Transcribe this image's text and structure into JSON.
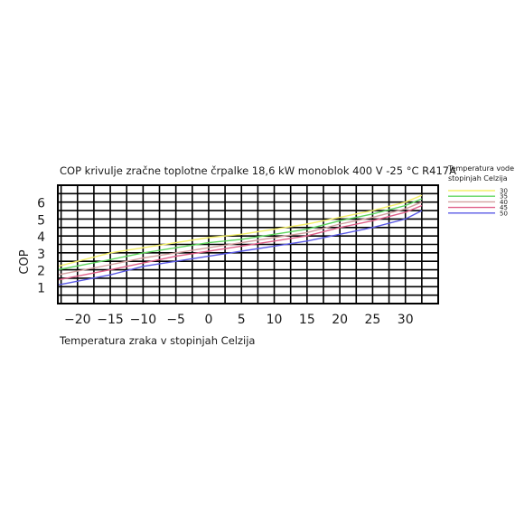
{
  "chart_data": {
    "type": "line",
    "title": "COP krivulje zračne toplotne črpalke 18,6 kW monoblok 400 V -25 °C R417A",
    "xlabel": "Temperatura zraka v stopinjah Celzija",
    "ylabel": "COP",
    "xlim": [
      -23,
      35
    ],
    "ylim": [
      0,
      7
    ],
    "x_ticks": [
      -20,
      -15,
      -10,
      -5,
      0,
      5,
      10,
      15,
      20,
      25,
      30
    ],
    "y_ticks": [
      1,
      2,
      3,
      4,
      5,
      6
    ],
    "grid": true,
    "legend_title": "Temperatura vode v stopinjah Celzija",
    "legend_position": "right",
    "series": [
      {
        "name": "30",
        "color": "#f4f06a",
        "points": [
          [
            -23,
            2.2
          ],
          [
            -15,
            3.0
          ],
          [
            -10,
            3.3
          ],
          [
            -5,
            3.6
          ],
          [
            0,
            3.9
          ],
          [
            5,
            4.1
          ],
          [
            10,
            4.4
          ],
          [
            15,
            4.7
          ],
          [
            20,
            5.1
          ],
          [
            25,
            5.5
          ],
          [
            30,
            6.0
          ],
          [
            32.5,
            6.4
          ]
        ]
      },
      {
        "name": "35",
        "color": "#5fd65f",
        "points": [
          [
            -23,
            2.0
          ],
          [
            -15,
            2.6
          ],
          [
            -10,
            3.0
          ],
          [
            -5,
            3.3
          ],
          [
            0,
            3.6
          ],
          [
            5,
            3.8
          ],
          [
            10,
            4.1
          ],
          [
            15,
            4.4
          ],
          [
            20,
            4.9
          ],
          [
            25,
            5.3
          ],
          [
            30,
            5.8
          ],
          [
            32.5,
            6.2
          ]
        ]
      },
      {
        "name": "40",
        "color": "#d4a1a1",
        "points": [
          [
            -23,
            1.7
          ],
          [
            -15,
            2.3
          ],
          [
            -10,
            2.7
          ],
          [
            -5,
            3.0
          ],
          [
            0,
            3.3
          ],
          [
            5,
            3.6
          ],
          [
            10,
            3.9
          ],
          [
            15,
            4.2
          ],
          [
            20,
            4.7
          ],
          [
            25,
            5.1
          ],
          [
            30,
            5.6
          ],
          [
            32.5,
            6.0
          ]
        ]
      },
      {
        "name": "45",
        "color": "#e0608a",
        "points": [
          [
            -23,
            1.4
          ],
          [
            -15,
            2.0
          ],
          [
            -10,
            2.4
          ],
          [
            -5,
            2.8
          ],
          [
            0,
            3.1
          ],
          [
            5,
            3.4
          ],
          [
            10,
            3.7
          ],
          [
            15,
            4.0
          ],
          [
            20,
            4.5
          ],
          [
            25,
            4.9
          ],
          [
            30,
            5.4
          ],
          [
            32.5,
            5.8
          ]
        ]
      },
      {
        "name": "50",
        "color": "#5a5ae6",
        "points": [
          [
            -23,
            1.1
          ],
          [
            -15,
            1.7
          ],
          [
            -10,
            2.2
          ],
          [
            -5,
            2.5
          ],
          [
            0,
            2.8
          ],
          [
            5,
            3.1
          ],
          [
            10,
            3.4
          ],
          [
            15,
            3.7
          ],
          [
            20,
            4.1
          ],
          [
            25,
            4.5
          ],
          [
            30,
            5.0
          ],
          [
            32.5,
            5.5
          ]
        ]
      }
    ]
  }
}
